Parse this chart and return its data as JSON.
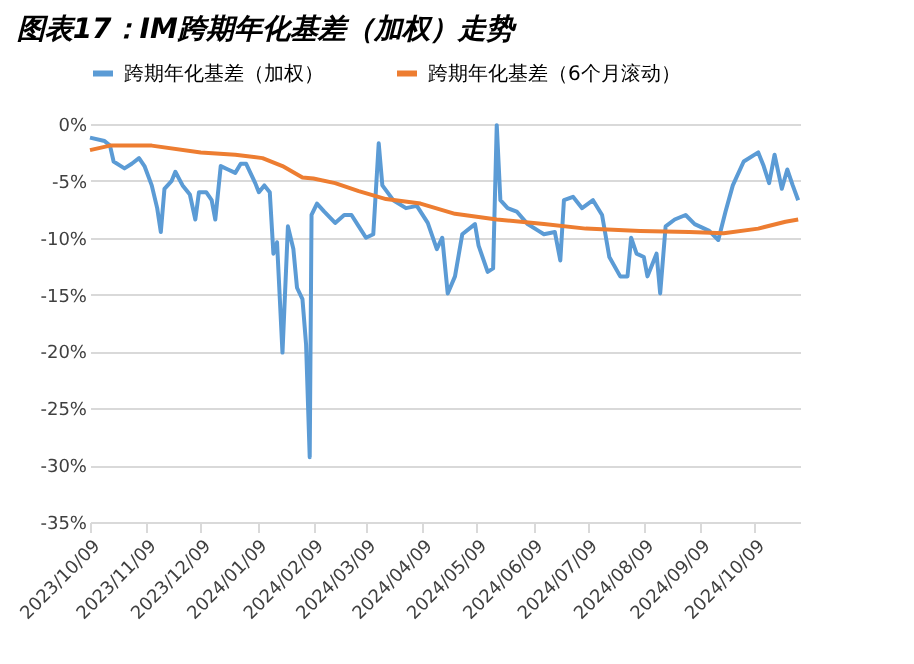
{
  "chart_data": {
    "type": "line",
    "title": "图表17：IM跨期年化基差（加权）走势",
    "xlim": [
      "2023-10-09",
      "2024-11-03"
    ],
    "xticks": [
      {
        "value": "2023-10-09",
        "label": "2023/10/09"
      },
      {
        "value": "2023-11-09",
        "label": "2023/11/09"
      },
      {
        "value": "2023-12-09",
        "label": "2023/12/09"
      },
      {
        "value": "2024-01-09",
        "label": "2024/01/09"
      },
      {
        "value": "2024-02-09",
        "label": "2024/02/09"
      },
      {
        "value": "2024-03-09",
        "label": "2024/03/09"
      },
      {
        "value": "2024-04-09",
        "label": "2024/04/09"
      },
      {
        "value": "2024-05-09",
        "label": "2024/05/09"
      },
      {
        "value": "2024-06-09",
        "label": "2024/06/09"
      },
      {
        "value": "2024-07-09",
        "label": "2024/07/09"
      },
      {
        "value": "2024-08-09",
        "label": "2024/08/09"
      },
      {
        "value": "2024-09-09",
        "label": "2024/09/09"
      },
      {
        "value": "2024-10-09",
        "label": "2024/10/09"
      }
    ],
    "ylim": [
      -35,
      0
    ],
    "yticks": [
      {
        "value": 0,
        "label": "0%"
      },
      {
        "value": -5,
        "label": "-5%"
      },
      {
        "value": -10,
        "label": "-10%"
      },
      {
        "value": -15,
        "label": "-15%"
      },
      {
        "value": -20,
        "label": "-20%"
      },
      {
        "value": -25,
        "label": "-25%"
      },
      {
        "value": -30,
        "label": "-30%"
      },
      {
        "value": -35,
        "label": "-35%"
      }
    ],
    "grid": "y",
    "legend": "top",
    "marker": "none",
    "line_style": "solid",
    "series": [
      {
        "name": "跨期年化基差（加权）",
        "color": "#5b9bd5",
        "x": [
          "2023-10-09",
          "2023-10-17",
          "2023-10-20",
          "2023-10-22",
          "2023-10-26",
          "2023-10-28",
          "2023-11-01",
          "2023-11-05",
          "2023-11-08",
          "2023-11-12",
          "2023-11-15",
          "2023-11-17",
          "2023-11-19",
          "2023-11-23",
          "2023-11-25",
          "2023-11-29",
          "2023-12-03",
          "2023-12-06",
          "2023-12-08",
          "2023-12-12",
          "2023-12-15",
          "2023-12-17",
          "2023-12-20",
          "2023-12-24",
          "2023-12-28",
          "2023-12-31",
          "2024-01-03",
          "2024-01-08",
          "2024-01-10",
          "2024-01-13",
          "2024-01-16",
          "2024-01-18",
          "2024-01-20",
          "2024-01-23",
          "2024-01-26",
          "2024-01-29",
          "2024-01-31",
          "2024-02-03",
          "2024-02-05",
          "2024-02-07",
          "2024-02-08",
          "2024-02-11",
          "2024-02-15",
          "2024-02-21",
          "2024-02-26",
          "2024-03-01",
          "2024-03-05",
          "2024-03-09",
          "2024-03-13",
          "2024-03-16",
          "2024-03-18",
          "2024-03-24",
          "2024-03-31",
          "2024-04-06",
          "2024-04-12",
          "2024-04-17",
          "2024-04-20",
          "2024-04-23",
          "2024-04-27",
          "2024-05-01",
          "2024-05-08",
          "2024-05-10",
          "2024-05-15",
          "2024-05-18",
          "2024-05-20",
          "2024-05-22",
          "2024-05-26",
          "2024-05-31",
          "2024-06-06",
          "2024-06-12",
          "2024-06-15",
          "2024-06-21",
          "2024-06-24",
          "2024-06-26",
          "2024-07-01",
          "2024-07-06",
          "2024-07-12",
          "2024-07-17",
          "2024-07-21",
          "2024-07-27",
          "2024-07-31",
          "2024-08-02",
          "2024-08-05",
          "2024-08-09",
          "2024-08-11",
          "2024-08-16",
          "2024-08-18",
          "2024-08-21",
          "2024-08-26",
          "2024-09-01",
          "2024-09-06",
          "2024-09-14",
          "2024-09-19",
          "2024-09-23",
          "2024-09-27",
          "2024-10-03",
          "2024-10-11",
          "2024-10-14",
          "2024-10-17",
          "2024-10-20",
          "2024-10-24",
          "2024-10-27",
          "2024-10-30",
          "2024-11-02"
        ],
        "values": [
          -1.2,
          -1.5,
          -1.9,
          -3.3,
          -3.7,
          -3.9,
          -3.5,
          -3.0,
          -3.7,
          -5.4,
          -7.4,
          -9.5,
          -5.7,
          -5.0,
          -4.2,
          -5.4,
          -6.2,
          -8.4,
          -6.0,
          -6.0,
          -6.7,
          -8.4,
          -3.7,
          -4.0,
          -4.3,
          -3.5,
          -3.5,
          -5.2,
          -6.0,
          -5.4,
          -6.0,
          -11.4,
          -10.4,
          -20.1,
          -9.0,
          -11.0,
          -14.4,
          -15.4,
          -19.4,
          -29.3,
          -8.0,
          -7.0,
          -7.7,
          -8.7,
          -8.0,
          -8.0,
          -9.0,
          -10.0,
          -9.7,
          -1.7,
          -5.4,
          -6.7,
          -7.4,
          -7.2,
          -8.7,
          -11.0,
          -10.0,
          -14.9,
          -13.4,
          -9.7,
          -8.8,
          -10.7,
          -13.0,
          -12.7,
          -0.1,
          -6.7,
          -7.4,
          -7.7,
          -8.8,
          -9.4,
          -9.7,
          -9.5,
          -12.0,
          -6.7,
          -6.4,
          -7.4,
          -6.7,
          -8.0,
          -11.7,
          -13.4,
          -13.4,
          -10.0,
          -11.4,
          -11.7,
          -13.4,
          -11.4,
          -14.9,
          -9.0,
          -8.4,
          -8.0,
          -8.8,
          -9.4,
          -10.2,
          -7.7,
          -5.4,
          -3.3,
          -2.5,
          -3.7,
          -5.2,
          -2.7,
          -5.7,
          -4.0,
          -5.4,
          -6.7
        ]
      },
      {
        "name": "跨期年化基差（6个月滚动）",
        "color": "#ed7d31",
        "x": [
          "2023-10-09",
          "2023-10-20",
          "2023-11-12",
          "2023-12-09",
          "2023-12-28",
          "2024-01-12",
          "2024-01-23",
          "2024-02-03",
          "2024-02-09",
          "2024-02-21",
          "2024-03-05",
          "2024-03-20",
          "2024-04-08",
          "2024-04-27",
          "2024-05-20",
          "2024-06-15",
          "2024-07-08",
          "2024-08-07",
          "2024-09-03",
          "2024-09-22",
          "2024-10-11",
          "2024-10-26",
          "2024-11-02"
        ],
        "values": [
          -2.3,
          -1.9,
          -1.9,
          -2.5,
          -2.7,
          -3.0,
          -3.7,
          -4.7,
          -4.8,
          -5.2,
          -5.9,
          -6.6,
          -7.0,
          -7.9,
          -8.4,
          -8.8,
          -9.2,
          -9.4,
          -9.5,
          -9.6,
          -9.2,
          -8.6,
          -8.4
        ]
      }
    ]
  }
}
